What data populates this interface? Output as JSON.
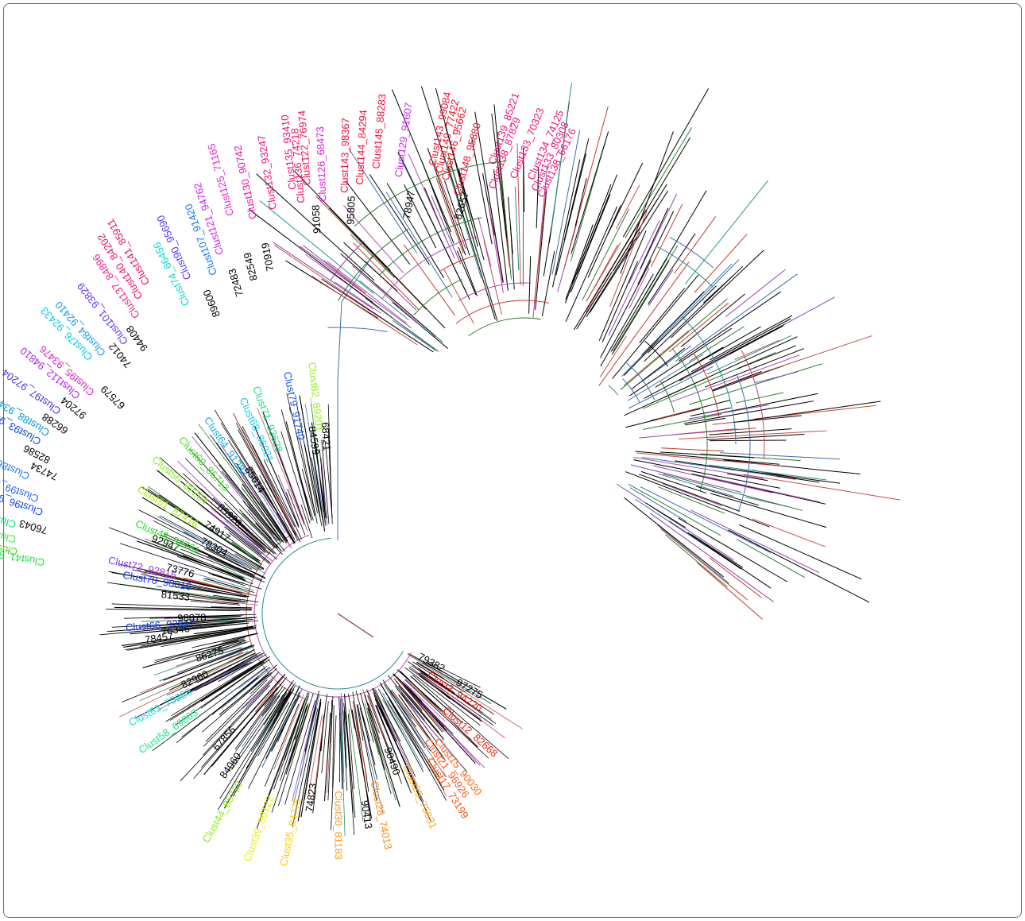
{
  "tree": {
    "labels": [
      {
        "text": "Clust53_69657",
        "color": "#00e676",
        "angle": -75,
        "r": 605
      },
      {
        "text": "Clust53_77277",
        "color": "#33ee44",
        "angle": -77,
        "r": 580
      },
      {
        "text": "Clust50_92467",
        "color": "#44dd11",
        "angle": -79,
        "r": 570
      },
      {
        "text": "Clust41_98376",
        "color": "#22dd44",
        "angle": -80,
        "r": 520
      },
      {
        "text": "76043",
        "color": "#000000",
        "angle": -74,
        "r": 528
      },
      {
        "text": "Clust96_97813",
        "color": "#1144ee",
        "angle": -71,
        "r": 545
      },
      {
        "text": "Clust99_92127",
        "color": "#2266ff",
        "angle": -69,
        "r": 560
      },
      {
        "text": "Clust86_69207",
        "color": "#2277ee",
        "angle": -66,
        "r": 590
      },
      {
        "text": "74734",
        "color": "#000000",
        "angle": -64,
        "r": 545
      },
      {
        "text": "82586",
        "color": "#000000",
        "angle": -62,
        "r": 570
      },
      {
        "text": "Clust93_96986",
        "color": "#1144dd",
        "angle": -60,
        "r": 600
      },
      {
        "text": "Clust88_93446",
        "color": "#0099dd",
        "angle": -58,
        "r": 595
      },
      {
        "text": "66288",
        "color": "#000000",
        "angle": -56,
        "r": 570
      },
      {
        "text": "Clust97_97204",
        "color": "#4433dd",
        "angle": -54,
        "r": 600
      },
      {
        "text": "97204",
        "color": "#000000",
        "angle": -52,
        "r": 560
      },
      {
        "text": "Clust112_94810",
        "color": "#aa22ee",
        "angle": -50,
        "r": 590
      },
      {
        "text": "Clust95_93476",
        "color": "#dd22cc",
        "angle": -48,
        "r": 575
      },
      {
        "text": "67579",
        "color": "#000000",
        "angle": -46,
        "r": 520
      },
      {
        "text": "Clust76_92433",
        "color": "#00ccdd",
        "angle": -44,
        "r": 620
      },
      {
        "text": "Clust84_92410",
        "color": "#1199ee",
        "angle": -42,
        "r": 610
      },
      {
        "text": "74012",
        "color": "#000000",
        "angle": -40,
        "r": 565
      },
      {
        "text": "Clust101_93829",
        "color": "#6633ee",
        "angle": -38,
        "r": 600
      },
      {
        "text": "94408",
        "color": "#000000",
        "angle": -36,
        "r": 570
      },
      {
        "text": "Clust137_84896",
        "color": "#ee2288",
        "angle": -34,
        "r": 625
      },
      {
        "text": "Clust140_84202",
        "color": "#ee1166",
        "angle": -32,
        "r": 650
      },
      {
        "text": "Clust141_85911",
        "color": "#dd1166",
        "angle": -30,
        "r": 665
      },
      {
        "text": "Clust74_66456",
        "color": "#00ddcc",
        "angle": -26,
        "r": 600
      },
      {
        "text": "Clust90_95690",
        "color": "#5533ee",
        "angle": -24,
        "r": 640
      },
      {
        "text": "89600",
        "color": "#000000",
        "angle": -22,
        "r": 560
      },
      {
        "text": "Clust107_91420",
        "color": "#1177ee",
        "angle": -20,
        "r": 630
      },
      {
        "text": "Clust121_94762",
        "color": "#cc22ee",
        "angle": -18,
        "r": 660
      },
      {
        "text": "72483",
        "color": "#000000",
        "angle": -17,
        "r": 580
      },
      {
        "text": "Clust125_71165",
        "color": "#ee22cc",
        "angle": -15,
        "r": 720
      },
      {
        "text": "82549",
        "color": "#000000",
        "angle": -14,
        "r": 600
      },
      {
        "text": "Clust130_90742",
        "color": "#ee11aa",
        "angle": -12,
        "r": 705
      },
      {
        "text": "70919",
        "color": "#000000",
        "angle": -11,
        "r": 610
      },
      {
        "text": "Clust132_93247",
        "color": "#ee1188",
        "angle": -9,
        "r": 715
      },
      {
        "text": "Clust135_93410",
        "color": "#ee1177",
        "angle": -6,
        "r": 745
      },
      {
        "text": "Clust136_74218",
        "color": "#ee1166",
        "angle": -5,
        "r": 720
      },
      {
        "text": "Clust122_76974",
        "color": "#ee1155",
        "angle": -4,
        "r": 750
      },
      {
        "text": "91058",
        "color": "#000000",
        "angle": -3,
        "r": 665
      },
      {
        "text": "Clust126_68473",
        "color": "#dd22dd",
        "angle": -2,
        "r": 720
      },
      {
        "text": "Clust143_98367",
        "color": "#ee1144",
        "angle": 1,
        "r": 735
      },
      {
        "text": "95805",
        "color": "#000000",
        "angle": 2,
        "r": 680
      },
      {
        "text": "Clust144_84294",
        "color": "#ee1133",
        "angle": 3,
        "r": 750
      },
      {
        "text": "Clust145_88283",
        "color": "#ee1144",
        "angle": 5,
        "r": 780
      },
      {
        "text": "Clust129_91607",
        "color": "#cc22ee",
        "angle": 8,
        "r": 770
      },
      {
        "text": "78947",
        "color": "#000000",
        "angle": 10,
        "r": 700
      },
      {
        "text": "Clust143_99084",
        "color": "#ee1133",
        "angle": 12,
        "r": 800
      },
      {
        "text": "Clust149_77422",
        "color": "#ee1122",
        "angle": 13,
        "r": 790
      },
      {
        "text": "Clust146_95662",
        "color": "#ee1122",
        "angle": 14,
        "r": 780
      },
      {
        "text": "Clust148_95880",
        "color": "#ee1133",
        "angle": 16,
        "r": 760
      },
      {
        "text": "82657",
        "color": "#000000",
        "angle": 17,
        "r": 720
      },
      {
        "text": "Clust139_85221",
        "color": "#ee1188",
        "angle": 19,
        "r": 830
      },
      {
        "text": "Clust138_87829",
        "color": "#ee1177",
        "angle": 20,
        "r": 790
      },
      {
        "text": "Clust133_70323",
        "color": "#ee1177",
        "angle": 22,
        "r": 820
      },
      {
        "text": "Clust134_74125",
        "color": "#ee1177",
        "angle": 24,
        "r": 830
      },
      {
        "text": "Clust133_80308",
        "color": "#ee1188",
        "angle": 25,
        "r": 815
      },
      {
        "text": "Clust138_66176",
        "color": "#ee1177",
        "angle": 26,
        "r": 810
      },
      {
        "text": "79382",
        "color": "#000000",
        "angle": 118,
        "r": 160
      },
      {
        "text": "97275",
        "color": "#000000",
        "angle": 120,
        "r": 240
      },
      {
        "text": "Clust3_94220",
        "color": "#ee2222",
        "angle": 124,
        "r": 190
      },
      {
        "text": "Clust12_82668",
        "color": "#ee2211",
        "angle": 132,
        "r": 250
      },
      {
        "text": "Clust15_90030",
        "color": "#ff6611",
        "angle": 142,
        "r": 280
      },
      {
        "text": "Clust17_73199",
        "color": "#ff5511",
        "angle": 148,
        "r": 300
      },
      {
        "text": "Clust21_96926",
        "color": "#ff5522",
        "angle": 145,
        "r": 270
      },
      {
        "text": "Clust25_75831",
        "color": "#ffaa11",
        "angle": 156,
        "r": 290
      },
      {
        "text": "90490",
        "color": "#000000",
        "angle": 160,
        "r": 250
      },
      {
        "text": "Clust28_74013",
        "color": "#ff8811",
        "angle": 168,
        "r": 300
      },
      {
        "text": "90413",
        "color": "#000000",
        "angle": 172,
        "r": 330
      },
      {
        "text": "Clust30_81183",
        "color": "#ff9911",
        "angle": 180,
        "r": 310
      },
      {
        "text": "74823",
        "color": "#000000",
        "angle": 188,
        "r": 300
      },
      {
        "text": "Clust35_84775",
        "color": "#ffcc00",
        "angle": 192,
        "r": 330
      },
      {
        "text": "Clust39_80122",
        "color": "#eeee11",
        "angle": 200,
        "r": 340
      },
      {
        "text": "Clust44_85713",
        "color": "#88ee11",
        "angle": 210,
        "r": 340
      },
      {
        "text": "84060",
        "color": "#000000",
        "angle": 215,
        "r": 300
      },
      {
        "text": "67856",
        "color": "#000000",
        "angle": 222,
        "r": 270
      },
      {
        "text": "Clust58_69863",
        "color": "#11ee88",
        "angle": 235,
        "r": 300
      },
      {
        "text": "Clust63_75963",
        "color": "#11dddd",
        "angle": 242,
        "r": 290
      },
      {
        "text": "82960",
        "color": "#000000",
        "angle": 245,
        "r": 250
      },
      {
        "text": "86275",
        "color": "#000000",
        "angle": 252,
        "r": 210
      },
      {
        "text": "78457",
        "color": "#000000",
        "angle": 262,
        "r": 290
      },
      {
        "text": "76346",
        "color": "#000000",
        "angle": 264,
        "r": 260
      },
      {
        "text": "Clust66_92817",
        "color": "#1133ee",
        "angle": 266,
        "r": 250
      },
      {
        "text": "98878",
        "color": "#000000",
        "angle": 268,
        "r": 230
      },
      {
        "text": "81533",
        "color": "#000000",
        "angle": 276,
        "r": 260
      },
      {
        "text": "Clust70_90016",
        "color": "#1133ee",
        "angle": 280,
        "r": 260
      },
      {
        "text": "Clust72_92815",
        "color": "#8833ee",
        "angle": 283,
        "r": 290
      },
      {
        "text": "73776",
        "color": "#000000",
        "angle": 285,
        "r": 260
      },
      {
        "text": "92947",
        "color": "#000000",
        "angle": 292,
        "r": 300
      },
      {
        "text": "Clust48_98761",
        "color": "#22dd22",
        "angle": 294,
        "r": 265
      },
      {
        "text": "78304",
        "color": "#000000",
        "angle": 298,
        "r": 220
      },
      {
        "text": "Clust51_87416",
        "color": "#aaee11",
        "angle": 302,
        "r": 290
      },
      {
        "text": "74917",
        "color": "#000000",
        "angle": 304,
        "r": 230
      },
      {
        "text": "Clust56_92204",
        "color": "#88ee22",
        "angle": 310,
        "r": 300
      },
      {
        "text": "85920",
        "color": "#000000",
        "angle": 312,
        "r": 230
      },
      {
        "text": "Clust60_85713",
        "color": "#44dd22",
        "angle": 318,
        "r": 290
      },
      {
        "text": "Clust64_91283",
        "color": "#11aadd",
        "angle": 326,
        "r": 290
      },
      {
        "text": "85614",
        "color": "#000000",
        "angle": 328,
        "r": 250
      },
      {
        "text": "Clust68_86021",
        "color": "#11ccee",
        "angle": 336,
        "r": 290
      },
      {
        "text": "Clust71_93628",
        "color": "#22dd88",
        "angle": 340,
        "r": 300
      },
      {
        "text": "Clust79_91740",
        "color": "#1155ee",
        "angle": 348,
        "r": 310
      },
      {
        "text": "84599",
        "color": "#000000",
        "angle": 352,
        "r": 280
      },
      {
        "text": "Clust82_89201",
        "color": "#99ee22",
        "angle": 354,
        "r": 320
      },
      {
        "text": "68421",
        "color": "#000000",
        "angle": 356,
        "r": 285
      }
    ]
  }
}
